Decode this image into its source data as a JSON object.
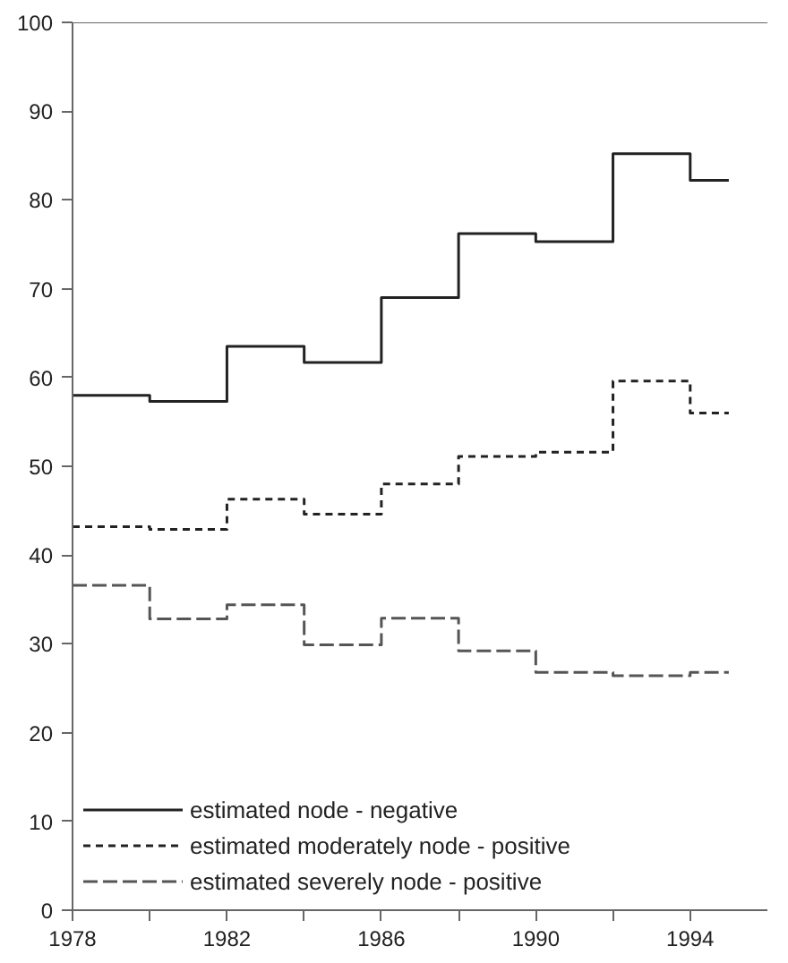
{
  "chart_data": {
    "type": "step",
    "x": [
      1978,
      1980,
      1982,
      1984,
      1986,
      1988,
      1990,
      1992,
      1994,
      1995
    ],
    "series": [
      {
        "name": "estimated node - negative",
        "color": "#222222",
        "line_style": "solid",
        "values": [
          58,
          57.3,
          63.5,
          61.7,
          69,
          76.2,
          75.3,
          85.2,
          82.2,
          82.2
        ]
      },
      {
        "name": "estimated moderately node - positive",
        "color": "#222222",
        "line_style": "dotted",
        "values": [
          43.2,
          42.9,
          46.3,
          44.6,
          48,
          51.1,
          51.6,
          59.6,
          56,
          56
        ]
      },
      {
        "name": "estimated severely node - positive",
        "color": "#555555",
        "line_style": "dashed",
        "values": [
          36.6,
          32.8,
          34.4,
          29.9,
          32.9,
          29.2,
          26.8,
          26.4,
          26.8,
          26.8
        ]
      }
    ],
    "xlim": [
      1978,
      1996
    ],
    "ylim": [
      0,
      100
    ],
    "xticks": [
      1978,
      {
        "value": 1980,
        "label": null
      },
      1982,
      {
        "value": 1984,
        "label": null
      },
      1986,
      {
        "value": 1988,
        "label": null
      },
      1990,
      {
        "value": 1992,
        "label": null
      },
      1994
    ],
    "yticks": [
      0,
      10,
      20,
      30,
      40,
      50,
      60,
      70,
      80,
      90,
      100
    ],
    "grid": false,
    "legend": "bottom left"
  }
}
